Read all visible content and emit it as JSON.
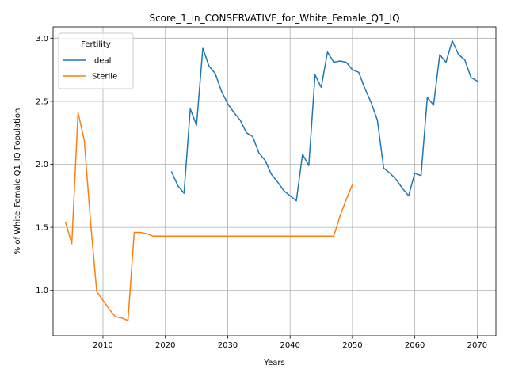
{
  "chart_data": {
    "type": "line",
    "title": "Score_1_in_CONSERVATIVE_for_White_Female_Q1_IQ",
    "xlabel": "Years",
    "ylabel": "% of White_Female Q1_IQ Population",
    "xlim": [
      2002,
      2073
    ],
    "ylim": [
      0.64,
      3.09
    ],
    "x_ticks": [
      2010,
      2020,
      2030,
      2040,
      2050,
      2060,
      2070
    ],
    "y_ticks": [
      1.0,
      1.5,
      2.0,
      2.5,
      3.0
    ],
    "grid": true,
    "legend": {
      "title": "Fertility",
      "position": "top-left"
    },
    "series": [
      {
        "name": "Ideal",
        "color": "#1f77b4",
        "x": [
          2021,
          2022,
          2023,
          2024,
          2025,
          2026,
          2027,
          2028,
          2029,
          2030,
          2031,
          2032,
          2033,
          2034,
          2035,
          2036,
          2037,
          2038,
          2039,
          2040,
          2041,
          2042,
          2043,
          2044,
          2045,
          2046,
          2047,
          2048,
          2049,
          2050,
          2051,
          2052,
          2053,
          2054,
          2055,
          2056,
          2057,
          2058,
          2059,
          2060,
          2061,
          2062,
          2063,
          2064,
          2065,
          2066,
          2067,
          2068,
          2069,
          2070
        ],
        "values": [
          1.94,
          1.83,
          1.77,
          2.44,
          2.31,
          2.92,
          2.78,
          2.72,
          2.58,
          2.48,
          2.41,
          2.35,
          2.25,
          2.22,
          2.09,
          2.03,
          1.92,
          1.86,
          1.79,
          1.75,
          1.71,
          2.08,
          1.99,
          2.71,
          2.61,
          2.89,
          2.81,
          2.82,
          2.81,
          2.75,
          2.73,
          2.6,
          2.49,
          2.35,
          1.97,
          1.93,
          1.88,
          1.81,
          1.75,
          1.93,
          1.91,
          2.53,
          2.47,
          2.87,
          2.81,
          2.98,
          2.87,
          2.83,
          2.69,
          2.66
        ]
      },
      {
        "name": "Sterile",
        "color": "#ff7f0e",
        "x": [
          2004,
          2005,
          2006,
          2007,
          2008,
          2009,
          2010,
          2011,
          2012,
          2013,
          2014,
          2015,
          2016,
          2017,
          2018,
          2019,
          2020,
          2021,
          2022,
          2023,
          2024,
          2025,
          2026,
          2027,
          2028,
          2029,
          2030,
          2031,
          2032,
          2033,
          2034,
          2035,
          2036,
          2037,
          2038,
          2039,
          2040,
          2041,
          2042,
          2043,
          2044,
          2045,
          2046,
          2047,
          2048,
          2049,
          2050
        ],
        "values": [
          1.54,
          1.37,
          2.41,
          2.19,
          1.55,
          0.99,
          0.92,
          0.85,
          0.79,
          0.78,
          0.76,
          1.46,
          1.46,
          1.45,
          1.43,
          1.43,
          1.43,
          1.43,
          1.43,
          1.43,
          1.43,
          1.43,
          1.43,
          1.43,
          1.43,
          1.43,
          1.43,
          1.43,
          1.43,
          1.43,
          1.43,
          1.43,
          1.43,
          1.43,
          1.43,
          1.43,
          1.43,
          1.43,
          1.43,
          1.43,
          1.43,
          1.43,
          1.43,
          1.43,
          1.59,
          1.72,
          1.84
        ]
      }
    ]
  }
}
